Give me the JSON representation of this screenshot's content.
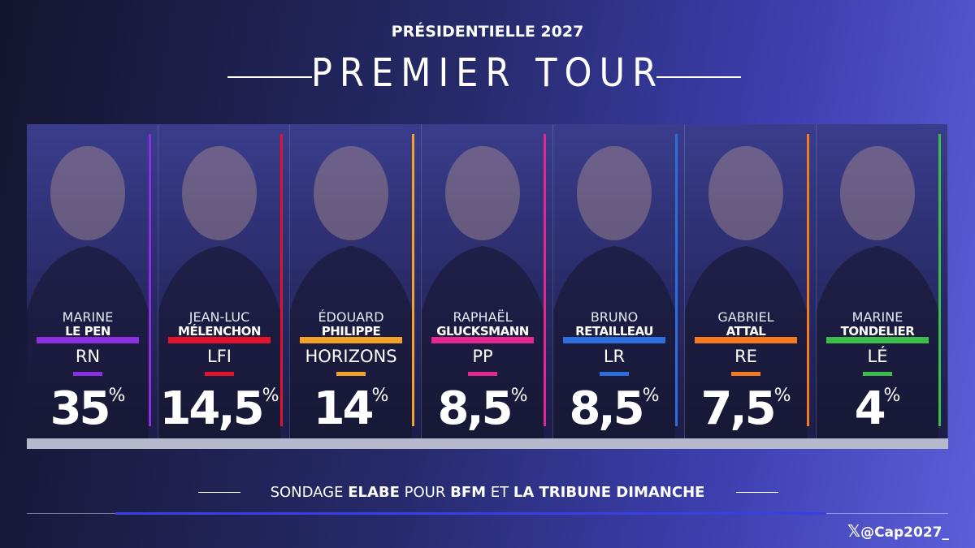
{
  "header": {
    "kicker": "PRÉSIDENTIELLE 2027",
    "title": "PREMIER TOUR"
  },
  "candidates": [
    {
      "first_name": "MARINE",
      "last_name": "LE PEN",
      "party": "RN",
      "score": "35",
      "unit": "%",
      "color": "#8b2fe0"
    },
    {
      "first_name": "JEAN-LUC",
      "last_name": "MÉLENCHON",
      "party": "LFI",
      "score": "14,5",
      "unit": "%",
      "color": "#e3132e"
    },
    {
      "first_name": "ÉDOUARD",
      "last_name": "PHILIPPE",
      "party": "HORIZONS",
      "score": "14",
      "unit": "%",
      "color": "#f2a228"
    },
    {
      "first_name": "RAPHAËL",
      "last_name": "GLUCKSMANN",
      "party": "PP",
      "score": "8,5",
      "unit": "%",
      "color": "#e3288f"
    },
    {
      "first_name": "BRUNO",
      "last_name": "RETAILLEAU",
      "party": "LR",
      "score": "8,5",
      "unit": "%",
      "color": "#2c6fdc"
    },
    {
      "first_name": "GABRIEL",
      "last_name": "ATTAL",
      "party": "RE",
      "score": "7,5",
      "unit": "%",
      "color": "#f5791f"
    },
    {
      "first_name": "MARINE",
      "last_name": "TONDELIER",
      "party": "LÉ",
      "score": "4",
      "unit": "%",
      "color": "#3cbc4a"
    }
  ],
  "footer": {
    "source": [
      {
        "text": "SONDAGE ",
        "bold": false
      },
      {
        "text": "ELABE",
        "bold": true
      },
      {
        "text": " POUR ",
        "bold": false
      },
      {
        "text": "BFM",
        "bold": true
      },
      {
        "text": " ET ",
        "bold": false
      },
      {
        "text": "LA TRIBUNE DIMANCHE",
        "bold": true
      }
    ],
    "handle": "@Cap2027_"
  }
}
